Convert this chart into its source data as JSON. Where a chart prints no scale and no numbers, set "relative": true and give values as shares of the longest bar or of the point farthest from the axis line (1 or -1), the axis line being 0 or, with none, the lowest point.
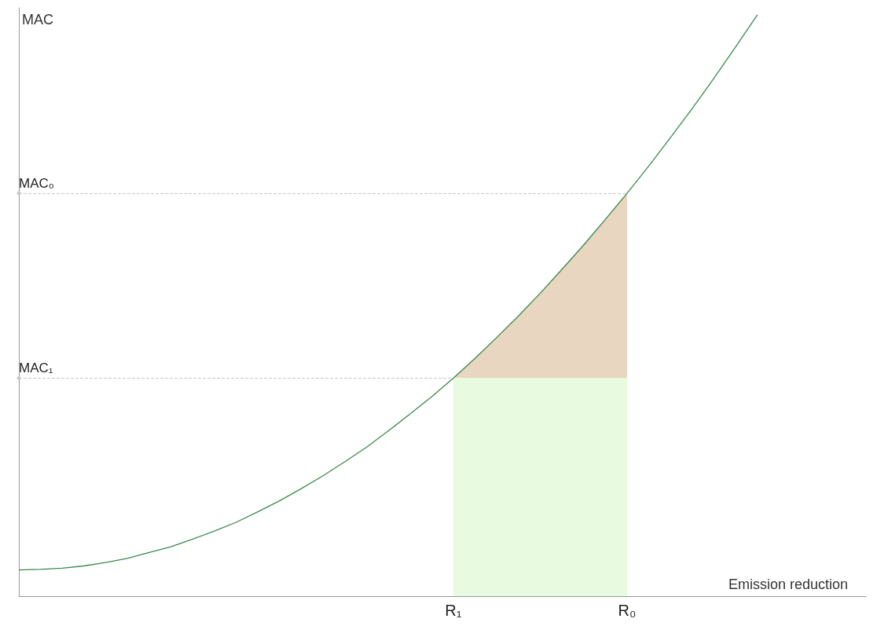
{
  "chart_data": {
    "type": "line",
    "relative": true,
    "xlabel": "Emission reduction",
    "ylabel": "MAC",
    "grid": false,
    "marker": "none",
    "categories": [
      null,
      null,
      null,
      null,
      null,
      null,
      null,
      null,
      null,
      null,
      null,
      null,
      null,
      null,
      null,
      null,
      null,
      null,
      null,
      null,
      "R₁",
      null,
      null,
      null,
      null,
      null,
      null,
      null,
      "R₀",
      null,
      null,
      null,
      null,
      null,
      null,
      null,
      null,
      null,
      null,
      null
    ],
    "series": [
      {
        "color": "#3a8a4a",
        "values": [
          0.045,
          0.046,
          0.048,
          0.052,
          0.058,
          0.065,
          0.075,
          0.085,
          0.098,
          0.112,
          0.127,
          0.145,
          0.164,
          0.185,
          0.207,
          0.231,
          0.256,
          0.284,
          0.313,
          0.343,
          0.375,
          0.409,
          0.445,
          0.482,
          0.521,
          0.562,
          0.604,
          0.648,
          0.693,
          0.74,
          0.789,
          0.839,
          0.891,
          0.945,
          1,
          null,
          null,
          null,
          null,
          null
        ]
      },
      {
        "type": "area",
        "color": "#e8d6c0",
        "values": [
          null,
          null,
          null,
          null,
          null,
          null,
          null,
          null,
          null,
          null,
          null,
          null,
          null,
          null,
          null,
          null,
          null,
          null,
          null,
          null,
          0.375,
          0.409,
          0.445,
          0.482,
          0.521,
          0.562,
          0.604,
          0.648,
          0.693,
          null,
          null,
          null,
          null,
          null,
          null,
          null,
          null,
          null,
          null,
          null
        ]
      },
      {
        "type": "area",
        "color": "#e8fadf",
        "values": [
          null,
          null,
          null,
          null,
          null,
          null,
          null,
          null,
          null,
          null,
          null,
          null,
          null,
          null,
          null,
          null,
          null,
          null,
          null,
          null,
          0.375,
          0.375,
          0.375,
          0.375,
          0.375,
          0.375,
          0.375,
          0.375,
          0.375,
          null,
          null,
          null,
          null,
          null,
          null,
          null,
          null,
          null,
          null,
          null
        ]
      }
    ],
    "ref_lines": [
      {
        "axis": "y",
        "value": 0.693,
        "label": "MAC₀",
        "line_style": "dashed",
        "color": "#c8c8c8"
      },
      {
        "axis": "y",
        "value": 0.375,
        "label": "MAC₁",
        "line_style": "dashed",
        "color": "#c8c8c8"
      }
    ]
  }
}
